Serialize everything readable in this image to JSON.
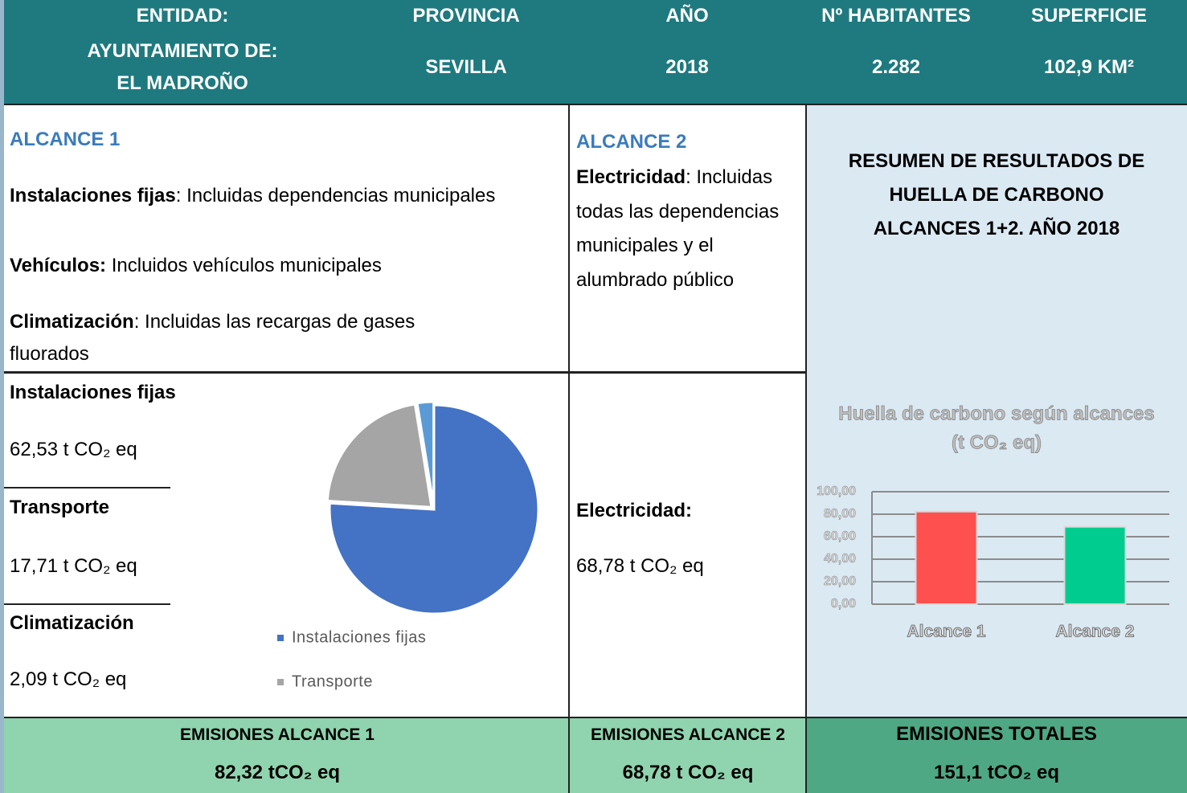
{
  "header": {
    "columns": [
      {
        "label": "ENTIDAD:",
        "value": [
          "AYUNTAMIENTO DE:",
          "EL MADROÑO"
        ]
      },
      {
        "label": "PROVINCIA",
        "value": [
          "SEVILLA"
        ]
      },
      {
        "label": "AÑO",
        "value": [
          "2018"
        ]
      },
      {
        "label": "Nº HABITANTES",
        "value": [
          "2.282"
        ]
      },
      {
        "label": "SUPERFICIE",
        "value": [
          "102,9 KM²"
        ]
      }
    ]
  },
  "alcance1": {
    "title": "ALCANCE 1",
    "items": [
      {
        "label": "Instalaciones fijas",
        "text": ": Incluidas dependencias municipales"
      },
      {
        "label": "Vehículos:",
        "text": " Incluidos vehículos municipales"
      },
      {
        "label": "Climatización",
        "text": ": Incluidas las recargas de gases fluorados"
      }
    ]
  },
  "alcance2": {
    "title": "ALCANCE 2",
    "items": [
      {
        "label": "Electricidad",
        "text": ": Incluidas todas las dependencias municipales y el alumbrado público"
      }
    ]
  },
  "summary": {
    "title": [
      "RESUMEN DE RESULTADOS DE",
      "HUELLA DE CARBONO",
      "ALCANCES 1+2. AÑO 2018"
    ]
  },
  "results1": [
    {
      "label": "Instalaciones fijas",
      "value": "62,53 t CO₂ eq"
    },
    {
      "label": "Transporte",
      "value": "17,71 t CO₂ eq"
    },
    {
      "label": "Climatización",
      "value": "2,09 t CO₂ eq"
    }
  ],
  "results2": {
    "label": "Electricidad:",
    "value": "68,78 t CO₂ eq"
  },
  "footer": [
    {
      "label": "EMISIONES ALCANCE 1",
      "value": "82,32 tCO₂ eq"
    },
    {
      "label": "EMISIONES ALCANCE 2",
      "value": "68,78 t CO₂ eq"
    },
    {
      "label": "EMISIONES TOTALES",
      "value": "151,1 tCO₂ eq"
    }
  ],
  "chart_data": [
    {
      "type": "pie",
      "categories": [
        "Instalaciones fijas",
        "Transporte",
        null
      ],
      "values": [
        62.53,
        17.71,
        2.09
      ],
      "colors": [
        "#4472c4",
        "#a5a5a5",
        "#5b9bd5"
      ]
    },
    {
      "type": "bar",
      "title": [
        "Huella de carbono según alcances",
        "(t CO₂ eq)"
      ],
      "categories": [
        "Alcance 1",
        "Alcance 2"
      ],
      "values": [
        82.32,
        68.78
      ],
      "colors": [
        "#ff5050",
        "#00cc8f"
      ],
      "ylim": [
        0,
        100
      ],
      "yticks": [
        {
          "value": 0,
          "label": "0,00"
        },
        {
          "value": 20,
          "label": "20,00"
        },
        {
          "value": 40,
          "label": "40,00"
        },
        {
          "value": 60,
          "label": "60,00"
        },
        {
          "value": 80,
          "label": "80,00"
        },
        {
          "value": 100,
          "label": "100,00"
        }
      ],
      "grid": true
    }
  ]
}
